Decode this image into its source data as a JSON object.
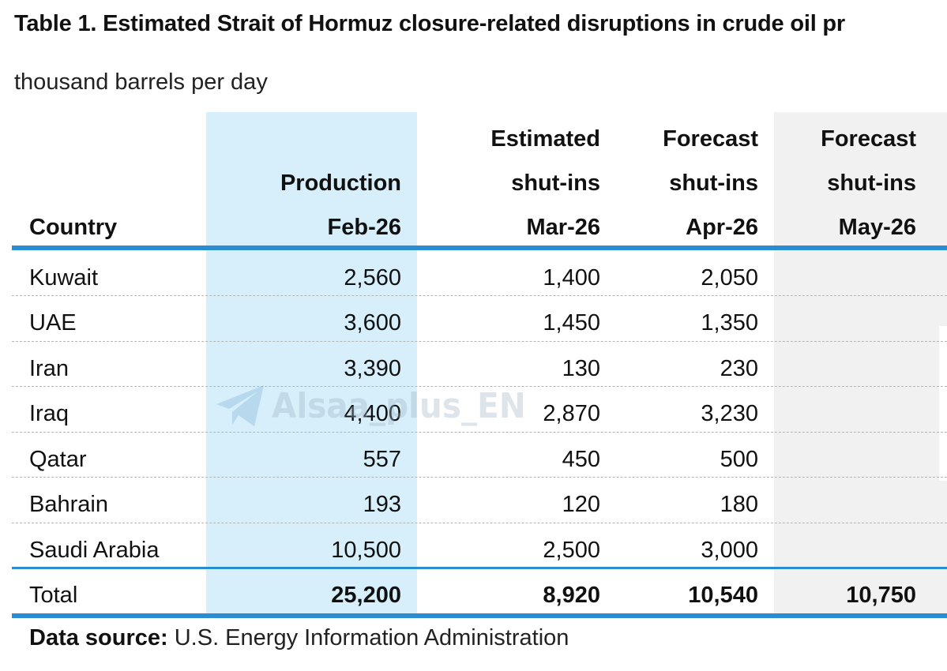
{
  "title": "Table 1. Estimated Strait of Hormuz closure-related disruptions in crude oil pr",
  "subtitle": "thousand barrels per day",
  "headers": {
    "country": "Country",
    "production": [
      "Production",
      "Feb-26"
    ],
    "estimated": [
      "Estimated",
      "shut-ins",
      "Mar-26"
    ],
    "forecast_apr": [
      "Forecast",
      "shut-ins",
      "Apr-26"
    ],
    "forecast_may": [
      "Forecast",
      "shut-ins",
      "May-26"
    ]
  },
  "rows": [
    {
      "country": "Kuwait",
      "production": "2,560",
      "estimated": "1,400",
      "forecast_apr": "2,050",
      "forecast_may": ""
    },
    {
      "country": "UAE",
      "production": "3,600",
      "estimated": "1,450",
      "forecast_apr": "1,350",
      "forecast_may": ""
    },
    {
      "country": "Iran",
      "production": "3,390",
      "estimated": "130",
      "forecast_apr": "230",
      "forecast_may": ""
    },
    {
      "country": "Iraq",
      "production": "4,400",
      "estimated": "2,870",
      "forecast_apr": "3,230",
      "forecast_may": ""
    },
    {
      "country": "Qatar",
      "production": "557",
      "estimated": "450",
      "forecast_apr": "500",
      "forecast_may": ""
    },
    {
      "country": "Bahrain",
      "production": "193",
      "estimated": "120",
      "forecast_apr": "180",
      "forecast_may": ""
    },
    {
      "country": "Saudi Arabia",
      "production": "10,500",
      "estimated": "2,500",
      "forecast_apr": "3,000",
      "forecast_may": ""
    }
  ],
  "total": {
    "label": "Total",
    "production": "25,200",
    "estimated": "8,920",
    "forecast_apr": "10,540",
    "forecast_may": "10,750"
  },
  "source": {
    "label": "Data source:",
    "text": " U.S. Energy Information Administration"
  },
  "watermark": {
    "text": "Alsaa_plus_EN",
    "icon": "telegram-plane-icon"
  },
  "colors": {
    "accent_blue": "#2a8dd1",
    "production_column": "#d6effa",
    "may_column": "#f1f1f1"
  }
}
